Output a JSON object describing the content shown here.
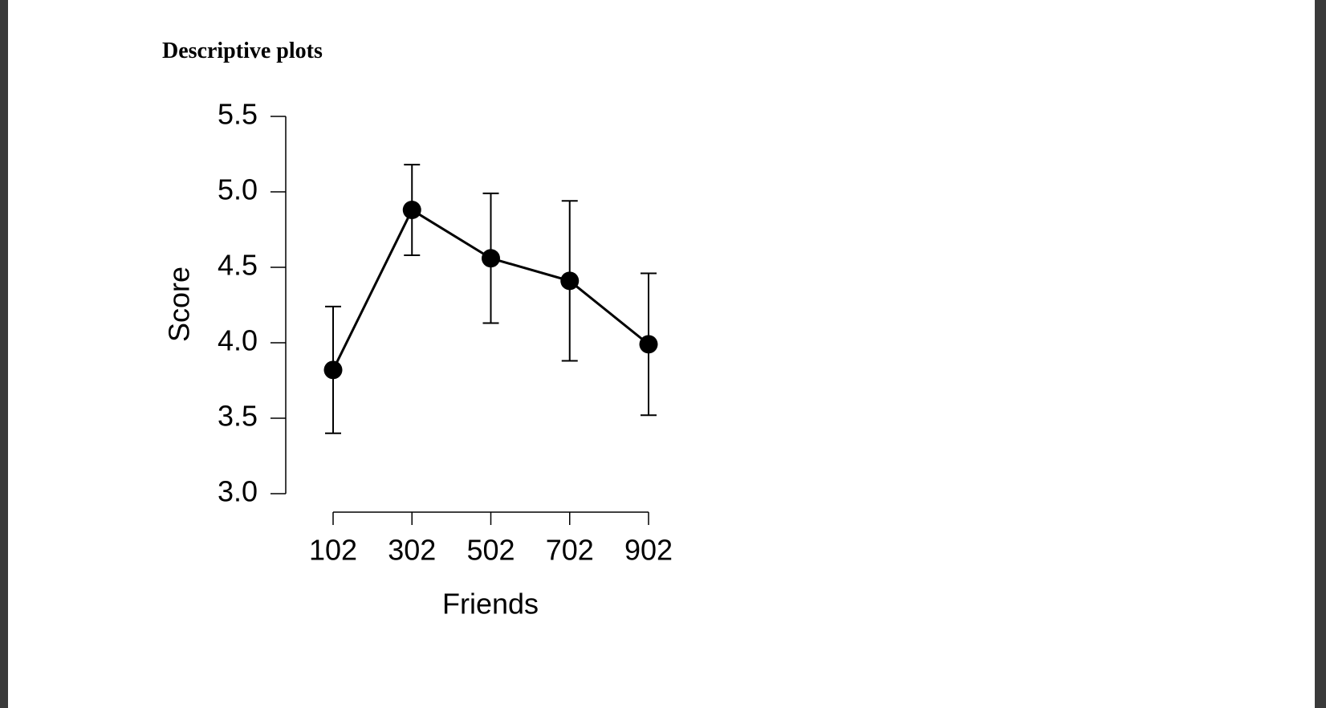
{
  "heading": "Descriptive plots",
  "chart_data": {
    "type": "line",
    "xlabel": "Friends",
    "ylabel": "Score",
    "categories": [
      "102",
      "302",
      "502",
      "702",
      "902"
    ],
    "series": [
      {
        "name": "Score",
        "color": "#000000",
        "values": [
          3.82,
          4.88,
          4.56,
          4.41,
          3.99
        ],
        "errors": [
          0.42,
          0.3,
          0.43,
          0.53,
          0.47
        ]
      }
    ],
    "ylim": [
      3.0,
      5.5
    ],
    "yticks": [
      {
        "value": 3.0,
        "label": "3.0"
      },
      {
        "value": 3.5,
        "label": "3.5"
      },
      {
        "value": 4.0,
        "label": "4.0"
      },
      {
        "value": 4.5,
        "label": "4.5"
      },
      {
        "value": 5.0,
        "label": "5.0"
      },
      {
        "value": 5.5,
        "label": "5.5"
      }
    ],
    "grid": false
  }
}
